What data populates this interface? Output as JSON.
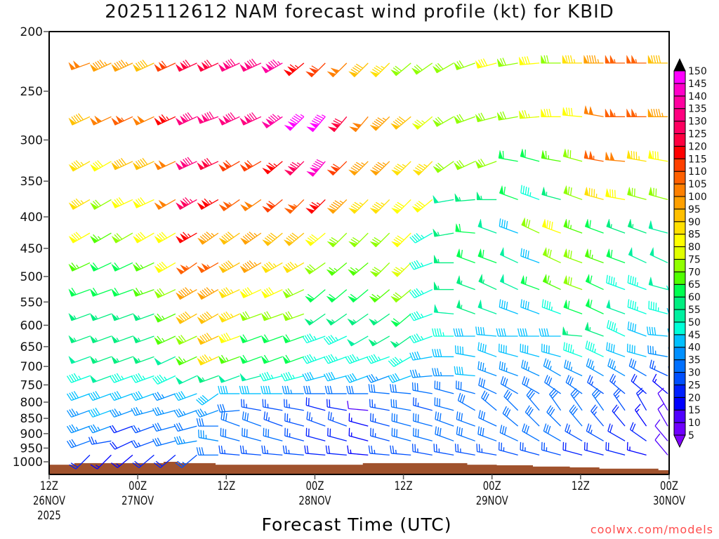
{
  "chart_data": {
    "type": "wind-barb-time-height",
    "title": "2025112612 NAM forecast wind profile (kt) for KBID",
    "xlabel": "Forecast Time (UTC)",
    "ylabel": "",
    "credit": "coolwx.com/models",
    "x_range_hours": [
      0,
      84
    ],
    "y_range_hpa": [
      200,
      1048
    ],
    "y_scale": "log",
    "y_ticks": [
      200,
      250,
      300,
      350,
      400,
      450,
      500,
      550,
      600,
      650,
      700,
      750,
      800,
      850,
      900,
      950,
      1000
    ],
    "x_ticks": [
      {
        "hour": 0,
        "lines": [
          "12Z",
          "26NOV",
          "2025"
        ]
      },
      {
        "hour": 12,
        "lines": [
          "00Z",
          "27NOV"
        ]
      },
      {
        "hour": 24,
        "lines": [
          "12Z"
        ]
      },
      {
        "hour": 36,
        "lines": [
          "00Z",
          "28NOV"
        ]
      },
      {
        "hour": 48,
        "lines": [
          "12Z"
        ]
      },
      {
        "hour": 60,
        "lines": [
          "00Z",
          "29NOV"
        ]
      },
      {
        "hour": 72,
        "lines": [
          "12Z"
        ]
      },
      {
        "hour": 84,
        "lines": [
          "00Z",
          "30NOV"
        ]
      }
    ],
    "column_start_hour": 2.85,
    "column_step_hours": 2.9,
    "levels_hpa": [
      225,
      275,
      325,
      375,
      425,
      475,
      525,
      575,
      625,
      675,
      725,
      775,
      825,
      875,
      925,
      975
    ],
    "speed_kt": [
      [
        100,
        95,
        95,
        90,
        110,
        120,
        120,
        130,
        130,
        135,
        115,
        110,
        100,
        90,
        85,
        70,
        70,
        70,
        70,
        80,
        70,
        80,
        70,
        85,
        95,
        105,
        105,
        90,
        75
      ],
      [
        90,
        100,
        105,
        100,
        115,
        130,
        130,
        130,
        130,
        135,
        145,
        145,
        120,
        100,
        95,
        90,
        75,
        70,
        70,
        70,
        70,
        75,
        80,
        80,
        100,
        105,
        105,
        95,
        85
      ],
      [
        85,
        80,
        90,
        90,
        100,
        130,
        120,
        110,
        110,
        115,
        125,
        140,
        110,
        95,
        95,
        85,
        85,
        70,
        70,
        70,
        60,
        60,
        65,
        70,
        105,
        100,
        85,
        80,
        70
      ],
      [
        85,
        70,
        80,
        80,
        100,
        125,
        115,
        105,
        100,
        110,
        105,
        115,
        95,
        85,
        85,
        80,
        80,
        50,
        55,
        55,
        60,
        45,
        55,
        70,
        85,
        80,
        70,
        70,
        55
      ],
      [
        80,
        65,
        70,
        80,
        80,
        115,
        95,
        90,
        95,
        90,
        90,
        80,
        70,
        70,
        70,
        80,
        45,
        55,
        60,
        50,
        40,
        70,
        80,
        65,
        60,
        55,
        55,
        50,
        50
      ],
      [
        65,
        60,
        60,
        65,
        80,
        105,
        105,
        90,
        95,
        85,
        85,
        70,
        65,
        65,
        70,
        75,
        45,
        55,
        60,
        60,
        50,
        40,
        70,
        70,
        65,
        60,
        50,
        50,
        50
      ],
      [
        60,
        60,
        60,
        65,
        70,
        95,
        95,
        85,
        80,
        80,
        70,
        60,
        60,
        60,
        65,
        70,
        45,
        55,
        55,
        55,
        50,
        60,
        65,
        70,
        60,
        45,
        45,
        50,
        45
      ],
      [
        55,
        55,
        55,
        55,
        65,
        90,
        90,
        85,
        70,
        70,
        70,
        55,
        55,
        55,
        55,
        60,
        45,
        50,
        55,
        50,
        40,
        40,
        45,
        60,
        60,
        50,
        45,
        45,
        40
      ],
      [
        55,
        55,
        55,
        55,
        65,
        70,
        90,
        80,
        60,
        60,
        60,
        45,
        45,
        50,
        55,
        55,
        45,
        45,
        40,
        40,
        40,
        40,
        40,
        55,
        55,
        45,
        40,
        40,
        40
      ],
      [
        50,
        55,
        55,
        55,
        50,
        65,
        85,
        65,
        60,
        60,
        60,
        45,
        45,
        45,
        45,
        45,
        40,
        40,
        40,
        40,
        40,
        40,
        40,
        45,
        45,
        40,
        40,
        35,
        35
      ],
      [
        45,
        50,
        45,
        45,
        45,
        50,
        55,
        50,
        50,
        45,
        45,
        40,
        40,
        40,
        35,
        40,
        35,
        35,
        40,
        35,
        35,
        35,
        35,
        35,
        35,
        35,
        30,
        25,
        25
      ],
      [
        40,
        40,
        40,
        40,
        35,
        40,
        40,
        40,
        40,
        40,
        35,
        30,
        30,
        30,
        30,
        30,
        30,
        30,
        30,
        30,
        30,
        30,
        30,
        30,
        25,
        25,
        20,
        15,
        10
      ],
      [
        35,
        40,
        35,
        35,
        35,
        35,
        35,
        30,
        25,
        25,
        25,
        20,
        20,
        10,
        25,
        30,
        25,
        30,
        30,
        30,
        30,
        30,
        30,
        30,
        30,
        25,
        20,
        10,
        10
      ],
      [
        35,
        35,
        20,
        25,
        30,
        30,
        30,
        30,
        30,
        25,
        25,
        25,
        25,
        15,
        25,
        30,
        30,
        30,
        30,
        30,
        30,
        30,
        30,
        30,
        25,
        20,
        15,
        10,
        10
      ],
      [
        30,
        25,
        20,
        25,
        30,
        35,
        35,
        30,
        30,
        30,
        25,
        20,
        20,
        15,
        25,
        30,
        30,
        30,
        30,
        30,
        30,
        30,
        30,
        25,
        25,
        20,
        20,
        10,
        10
      ],
      [
        20,
        15,
        15,
        20,
        20,
        25,
        30,
        25,
        25,
        25,
        25,
        20,
        20,
        15,
        25,
        25,
        25,
        25,
        25,
        25,
        25,
        25,
        25,
        20,
        20,
        20,
        15,
        10,
        10
      ]
    ],
    "direction_deg": [
      [
        250,
        245,
        245,
        245,
        245,
        245,
        245,
        245,
        245,
        240,
        230,
        225,
        225,
        225,
        225,
        230,
        235,
        240,
        250,
        255,
        260,
        265,
        270,
        270,
        270,
        270,
        270,
        270,
        270
      ],
      [
        245,
        245,
        245,
        245,
        245,
        245,
        250,
        245,
        245,
        235,
        225,
        220,
        220,
        220,
        225,
        230,
        230,
        240,
        250,
        255,
        260,
        265,
        270,
        275,
        280,
        270,
        270,
        270,
        270
      ],
      [
        240,
        240,
        245,
        245,
        245,
        245,
        245,
        240,
        240,
        230,
        225,
        220,
        225,
        225,
        225,
        225,
        225,
        235,
        245,
        250,
        280,
        285,
        280,
        285,
        280,
        275,
        280,
        280,
        270
      ],
      [
        240,
        240,
        245,
        245,
        240,
        240,
        240,
        235,
        235,
        230,
        225,
        225,
        225,
        225,
        225,
        225,
        230,
        260,
        265,
        270,
        290,
        290,
        285,
        290,
        285,
        280,
        285,
        285,
        280
      ],
      [
        240,
        240,
        240,
        240,
        240,
        240,
        235,
        235,
        235,
        230,
        230,
        230,
        225,
        225,
        225,
        225,
        240,
        260,
        275,
        290,
        290,
        295,
        290,
        290,
        290,
        290,
        290,
        285,
        280
      ],
      [
        245,
        245,
        245,
        245,
        240,
        235,
        240,
        240,
        240,
        240,
        240,
        235,
        230,
        230,
        225,
        225,
        250,
        270,
        290,
        290,
        295,
        290,
        295,
        290,
        290,
        290,
        295,
        295,
        280
      ],
      [
        250,
        250,
        250,
        250,
        245,
        240,
        240,
        245,
        245,
        245,
        245,
        230,
        230,
        230,
        230,
        230,
        245,
        270,
        290,
        295,
        295,
        290,
        295,
        290,
        295,
        290,
        290,
        285,
        260
      ],
      [
        250,
        250,
        250,
        250,
        245,
        240,
        240,
        245,
        250,
        250,
        250,
        235,
        235,
        235,
        235,
        230,
        250,
        275,
        290,
        290,
        290,
        290,
        290,
        290,
        295,
        290,
        290,
        285,
        265
      ],
      [
        250,
        250,
        250,
        250,
        245,
        245,
        245,
        250,
        250,
        250,
        250,
        250,
        245,
        240,
        240,
        235,
        250,
        270,
        270,
        275,
        270,
        270,
        270,
        275,
        290,
        295,
        290,
        275,
        270
      ],
      [
        250,
        250,
        250,
        250,
        245,
        245,
        245,
        250,
        250,
        250,
        250,
        250,
        250,
        250,
        250,
        240,
        260,
        270,
        280,
        290,
        285,
        285,
        285,
        290,
        295,
        290,
        285,
        280,
        275
      ],
      [
        250,
        250,
        250,
        250,
        245,
        245,
        250,
        250,
        255,
        255,
        255,
        255,
        255,
        250,
        250,
        250,
        265,
        270,
        275,
        290,
        290,
        295,
        300,
        295,
        300,
        300,
        300,
        295,
        275
      ],
      [
        250,
        250,
        250,
        250,
        250,
        250,
        235,
        270,
        270,
        270,
        270,
        270,
        270,
        270,
        275,
        275,
        280,
        285,
        285,
        295,
        300,
        300,
        305,
        305,
        305,
        310,
        310,
        310,
        290
      ],
      [
        250,
        250,
        250,
        255,
        255,
        250,
        250,
        265,
        280,
        280,
        280,
        285,
        280,
        275,
        280,
        280,
        285,
        285,
        300,
        310,
        315,
        320,
        325,
        325,
        325,
        325,
        330,
        330,
        320
      ],
      [
        250,
        250,
        250,
        250,
        255,
        255,
        270,
        290,
        290,
        290,
        285,
        290,
        290,
        285,
        285,
        285,
        285,
        290,
        290,
        295,
        310,
        315,
        315,
        320,
        320,
        320,
        325,
        330,
        330
      ],
      [
        250,
        260,
        245,
        250,
        255,
        260,
        280,
        285,
        285,
        285,
        285,
        285,
        285,
        285,
        285,
        285,
        285,
        290,
        290,
        290,
        295,
        300,
        300,
        300,
        300,
        300,
        305,
        320,
        330
      ],
      [
        225,
        225,
        230,
        230,
        230,
        230,
        270,
        275,
        275,
        275,
        275,
        275,
        275,
        275,
        275,
        275,
        280,
        280,
        280,
        280,
        285,
        285,
        285,
        285,
        285,
        285,
        285,
        320,
        330
      ]
    ],
    "surface_pressure": [
      [
        0,
        3.4,
        1011
      ],
      [
        3.4,
        15.5,
        1005
      ],
      [
        15.5,
        17.4,
        1000
      ],
      [
        17.4,
        22.5,
        1005
      ],
      [
        22.5,
        42.5,
        1011
      ],
      [
        42.5,
        56.6,
        1005
      ],
      [
        56.6,
        60.6,
        1011
      ],
      [
        60.6,
        65.5,
        1013
      ],
      [
        65.5,
        70.5,
        1018
      ],
      [
        70.5,
        74.5,
        1021
      ],
      [
        74.5,
        82.5,
        1026
      ],
      [
        82.5,
        84,
        1032
      ]
    ],
    "colorbar": {
      "labels": [
        5,
        10,
        15,
        20,
        25,
        30,
        35,
        40,
        45,
        50,
        55,
        60,
        65,
        70,
        75,
        80,
        85,
        90,
        95,
        100,
        105,
        110,
        115,
        120,
        125,
        130,
        135,
        140,
        145,
        150
      ],
      "colors": [
        "#7000ff",
        "#5000ff",
        "#0000ff",
        "#0020ff",
        "#0050ff",
        "#0070ff",
        "#0090ff",
        "#00c0ff",
        "#00ffd8",
        "#00f0a0",
        "#00ee80",
        "#00ff50",
        "#50ff00",
        "#90ff00",
        "#e0ff00",
        "#ffff00",
        "#ffe000",
        "#ffc000",
        "#ffa000",
        "#ff8000",
        "#ff6000",
        "#ff4000",
        "#ff0000",
        "#ff0040",
        "#ff0060",
        "#ff0080",
        "#ff00a0",
        "#ff00c8",
        "#ff00ff"
      ],
      "under_color": "#8000ff",
      "over_color": "#000000"
    },
    "ground_color": "#a0522d"
  }
}
